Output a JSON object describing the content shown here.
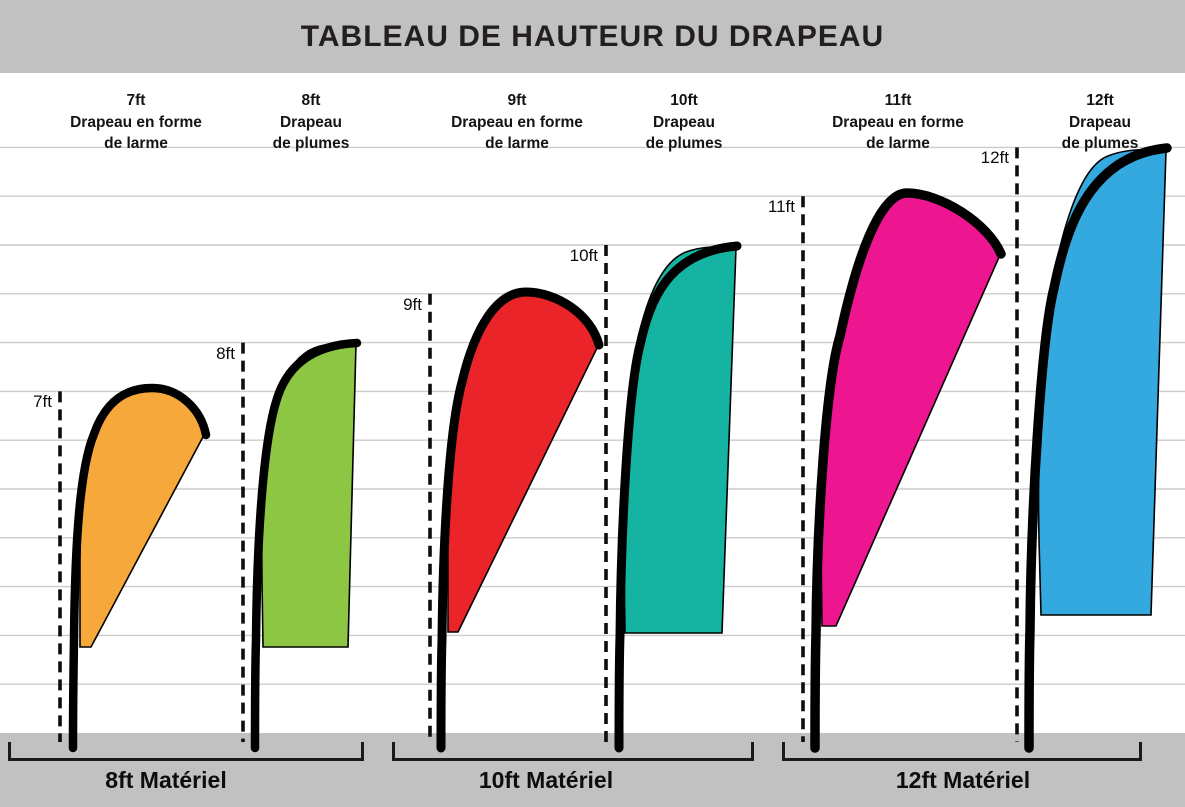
{
  "title": "TABLEAU DE HAUTEUR DU DRAPEAU",
  "colors": {
    "band_gray": "#C1C1C1",
    "grid_line": "#CCCCCC",
    "dash_line": "#0D0D0D",
    "outline": "#000000"
  },
  "flags": [
    {
      "tick": "7ft",
      "height_ft": 7,
      "shape": "teardrop",
      "color": "#F7A83B",
      "label_height": "7ft",
      "label_line1": "Drapeau en forme",
      "label_line2": "de larme"
    },
    {
      "tick": "8ft",
      "height_ft": 8,
      "shape": "feather",
      "color": "#8CC642",
      "label_height": "8ft",
      "label_line1": "Drapeau",
      "label_line2": "de plumes"
    },
    {
      "tick": "9ft",
      "height_ft": 9,
      "shape": "teardrop",
      "color": "#EA2429",
      "label_height": "9ft",
      "label_line1": "Drapeau en forme",
      "label_line2": "de larme"
    },
    {
      "tick": "10ft",
      "height_ft": 10,
      "shape": "feather",
      "color": "#14B3A2",
      "label_height": "10ft",
      "label_line1": "Drapeau",
      "label_line2": "de plumes"
    },
    {
      "tick": "11ft",
      "height_ft": 11,
      "shape": "teardrop",
      "color": "#ED1690",
      "label_height": "11ft",
      "label_line1": "Drapeau en forme",
      "label_line2": "de larme"
    },
    {
      "tick": "12ft",
      "height_ft": 12,
      "shape": "feather",
      "color": "#33A9E0",
      "label_height": "12ft",
      "label_line1": "Drapeau",
      "label_line2": "de plumes"
    }
  ],
  "bases": [
    {
      "label": "8ft Matériel"
    },
    {
      "label": "10ft Matériel"
    },
    {
      "label": "12ft Matériel"
    }
  ],
  "chart_data": {
    "type": "bar",
    "title": "TABLEAU DE HAUTEUR DU DRAPEAU",
    "categories": [
      "7ft Drapeau en forme de larme",
      "8ft Drapeau de plumes",
      "9ft Drapeau en forme de larme",
      "10ft Drapeau de plumes",
      "11ft Drapeau en forme de larme",
      "12ft Drapeau de plumes"
    ],
    "values": [
      7,
      8,
      9,
      10,
      11,
      12
    ],
    "unit": "ft",
    "ylim": [
      0,
      12
    ],
    "grid": true,
    "tick_labels": [
      "7ft",
      "8ft",
      "9ft",
      "10ft",
      "11ft",
      "12ft"
    ],
    "groups": [
      {
        "label": "8ft Matériel",
        "members": [
          "7ft Drapeau en forme de larme",
          "8ft Drapeau de plumes"
        ]
      },
      {
        "label": "10ft Matériel",
        "members": [
          "9ft Drapeau en forme de larme",
          "10ft Drapeau de plumes"
        ]
      },
      {
        "label": "12ft Matériel",
        "members": [
          "11ft Drapeau en forme de larme",
          "12ft Drapeau de plumes"
        ]
      }
    ]
  }
}
